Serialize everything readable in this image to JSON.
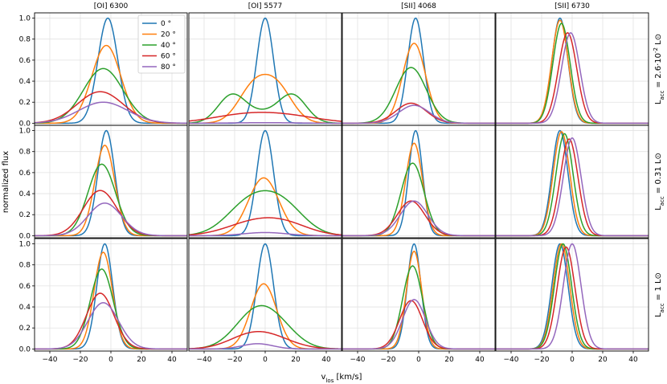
{
  "chart_data": {
    "type": "line",
    "figure": "Normalized line profiles vs inclination for three accretion luminosities",
    "column_titles": [
      "[OI] 6300",
      "[OI] 5577",
      "[SII] 4068",
      "[SII] 6730"
    ],
    "row_labels": [
      "L_acc = 2.6·10^-2 L⊙",
      "L_acc = 0.31 L⊙",
      "L_acc = 1 L⊙"
    ],
    "row_label_parts": [
      {
        "base": "L",
        "sub": "acc",
        "text": " = 2.6·10",
        "sup": "-2",
        "unit": " L⊙"
      },
      {
        "base": "L",
        "sub": "acc",
        "text": " = 0.31 L⊙",
        "sup": "",
        "unit": ""
      },
      {
        "base": "L",
        "sub": "acc",
        "text": " = 1 L⊙",
        "sup": "",
        "unit": ""
      }
    ],
    "xlabel": "v_los [km/s]",
    "xlabel_parts": {
      "base": "v",
      "sub": "los",
      "rest": " [km/s]"
    },
    "ylabel": "normalized flux",
    "xlim": [
      -50,
      50
    ],
    "ylim": [
      -0.02,
      1.05
    ],
    "xticks": [
      -40,
      -20,
      0,
      20,
      40
    ],
    "xtick_labels": [
      "−40",
      "−20",
      "0",
      "20",
      "40"
    ],
    "yticks": [
      0.0,
      0.2,
      0.4,
      0.6,
      0.8,
      1.0
    ],
    "ytick_labels": [
      "0.0",
      "0.2",
      "0.4",
      "0.6",
      "0.8",
      "1.0"
    ],
    "grid": true,
    "legend": {
      "location": "top-right of first panel",
      "entries": [
        "0 °",
        "20 °",
        "40 °",
        "60 °",
        "80 °"
      ]
    },
    "series_colors": [
      "#1f77b4",
      "#ff7f0e",
      "#2ca02c",
      "#d62728",
      "#9467bd"
    ],
    "model": "each curve = sum of gaussian components [amplitude, center_km_s, sigma_km_s], evaluated on x = -50..50",
    "panels": [
      [
        {
          "column": "[OI] 6300",
          "row": 0,
          "curves": [
            [
              [
                1.0,
                -2,
                6.5
              ]
            ],
            [
              [
                0.74,
                -3,
                9.5
              ]
            ],
            [
              [
                0.52,
                -5,
                13
              ]
            ],
            [
              [
                0.3,
                -7,
                15
              ]
            ],
            [
              [
                0.2,
                -5,
                16
              ]
            ]
          ]
        },
        {
          "column": "[OI] 5577",
          "row": 0,
          "curves": [
            [
              [
                1.0,
                0,
                5.5
              ]
            ],
            [
              [
                0.32,
                -8,
                10
              ],
              [
                0.32,
                8,
                10
              ]
            ],
            [
              [
                0.26,
                -22,
                9
              ],
              [
                0.26,
                18,
                9
              ],
              [
                0.09,
                -2,
                11
              ]
            ],
            [
              [
                0.07,
                -15,
                22
              ],
              [
                0.06,
                15,
                22
              ]
            ],
            [
              [
                0.005,
                0,
                20
              ]
            ]
          ]
        },
        {
          "column": "[SII] 4068",
          "row": 0,
          "curves": [
            [
              [
                1.0,
                -2,
                5.2
              ]
            ],
            [
              [
                0.76,
                -3,
                7.5
              ]
            ],
            [
              [
                0.53,
                -5,
                10
              ]
            ],
            [
              [
                0.19,
                -5,
                10
              ]
            ],
            [
              [
                0.17,
                -3,
                10
              ]
            ]
          ]
        },
        {
          "column": "[SII] 6730",
          "row": 0,
          "curves": [
            [
              [
                1.0,
                -8,
                5.2
              ]
            ],
            [
              [
                0.98,
                -8,
                5.4
              ]
            ],
            [
              [
                0.95,
                -7,
                5.6
              ]
            ],
            [
              [
                0.86,
                -3,
                6
              ]
            ],
            [
              [
                0.86,
                -1,
                6
              ]
            ]
          ]
        }
      ],
      [
        {
          "column": "[OI] 6300",
          "row": 1,
          "curves": [
            [
              [
                1.0,
                -3,
                5.5
              ]
            ],
            [
              [
                0.86,
                -4,
                6.5
              ]
            ],
            [
              [
                0.68,
                -6,
                9
              ]
            ],
            [
              [
                0.43,
                -7,
                11
              ]
            ],
            [
              [
                0.31,
                -4,
                11
              ]
            ]
          ]
        },
        {
          "column": "[OI] 5577",
          "row": 1,
          "curves": [
            [
              [
                1.0,
                0,
                5.5
              ]
            ],
            [
              [
                0.55,
                -1,
                10
              ]
            ],
            [
              [
                0.31,
                -10,
                15
              ],
              [
                0.26,
                12,
                14
              ]
            ],
            [
              [
                0.12,
                -8,
                18
              ],
              [
                0.09,
                14,
                16
              ]
            ],
            [
              [
                0.03,
                0,
                14
              ]
            ]
          ]
        },
        {
          "column": "[SII] 4068",
          "row": 1,
          "curves": [
            [
              [
                1.0,
                -2,
                4.5
              ]
            ],
            [
              [
                0.88,
                -3,
                5.5
              ]
            ],
            [
              [
                0.69,
                -4,
                7.5
              ]
            ],
            [
              [
                0.33,
                -5,
                9
              ]
            ],
            [
              [
                0.33,
                -3,
                9
              ]
            ]
          ]
        },
        {
          "column": "[SII] 6730",
          "row": 1,
          "curves": [
            [
              [
                1.0,
                -8,
                5.2
              ]
            ],
            [
              [
                0.99,
                -7,
                5.4
              ]
            ],
            [
              [
                0.97,
                -5,
                5.6
              ]
            ],
            [
              [
                0.92,
                -2,
                5.8
              ]
            ],
            [
              [
                0.93,
                0,
                5.8
              ]
            ]
          ]
        }
      ],
      [
        {
          "column": "[OI] 6300",
          "row": 2,
          "curves": [
            [
              [
                1.0,
                -4,
                5.2
              ]
            ],
            [
              [
                0.92,
                -5,
                6
              ]
            ],
            [
              [
                0.76,
                -6,
                7.5
              ]
            ],
            [
              [
                0.53,
                -7,
                9
              ]
            ],
            [
              [
                0.44,
                -5,
                10
              ]
            ]
          ]
        },
        {
          "column": "[OI] 5577",
          "row": 2,
          "curves": [
            [
              [
                1.0,
                0,
                5.5
              ]
            ],
            [
              [
                0.62,
                -1,
                8.5
              ]
            ],
            [
              [
                0.37,
                -5,
                14
              ],
              [
                0.1,
                12,
                12
              ]
            ],
            [
              [
                0.14,
                -8,
                15
              ],
              [
                0.05,
                10,
                14
              ]
            ],
            [
              [
                0.05,
                -5,
                10
              ]
            ]
          ]
        },
        {
          "column": "[SII] 4068",
          "row": 2,
          "curves": [
            [
              [
                1.0,
                -3,
                4.5
              ]
            ],
            [
              [
                0.93,
                -3,
                5
              ]
            ],
            [
              [
                0.79,
                -4,
                6.5
              ]
            ],
            [
              [
                0.46,
                -5,
                7.5
              ]
            ],
            [
              [
                0.47,
                -3,
                7.5
              ]
            ]
          ]
        },
        {
          "column": "[SII] 6730",
          "row": 2,
          "curves": [
            [
              [
                1.0,
                -8,
                5.3
              ]
            ],
            [
              [
                1.0,
                -7,
                5.4
              ]
            ],
            [
              [
                1.0,
                -6,
                5.6
              ]
            ],
            [
              [
                0.97,
                -4,
                5.8
              ]
            ],
            [
              [
                1.0,
                0,
                5.8
              ]
            ]
          ]
        }
      ]
    ]
  }
}
